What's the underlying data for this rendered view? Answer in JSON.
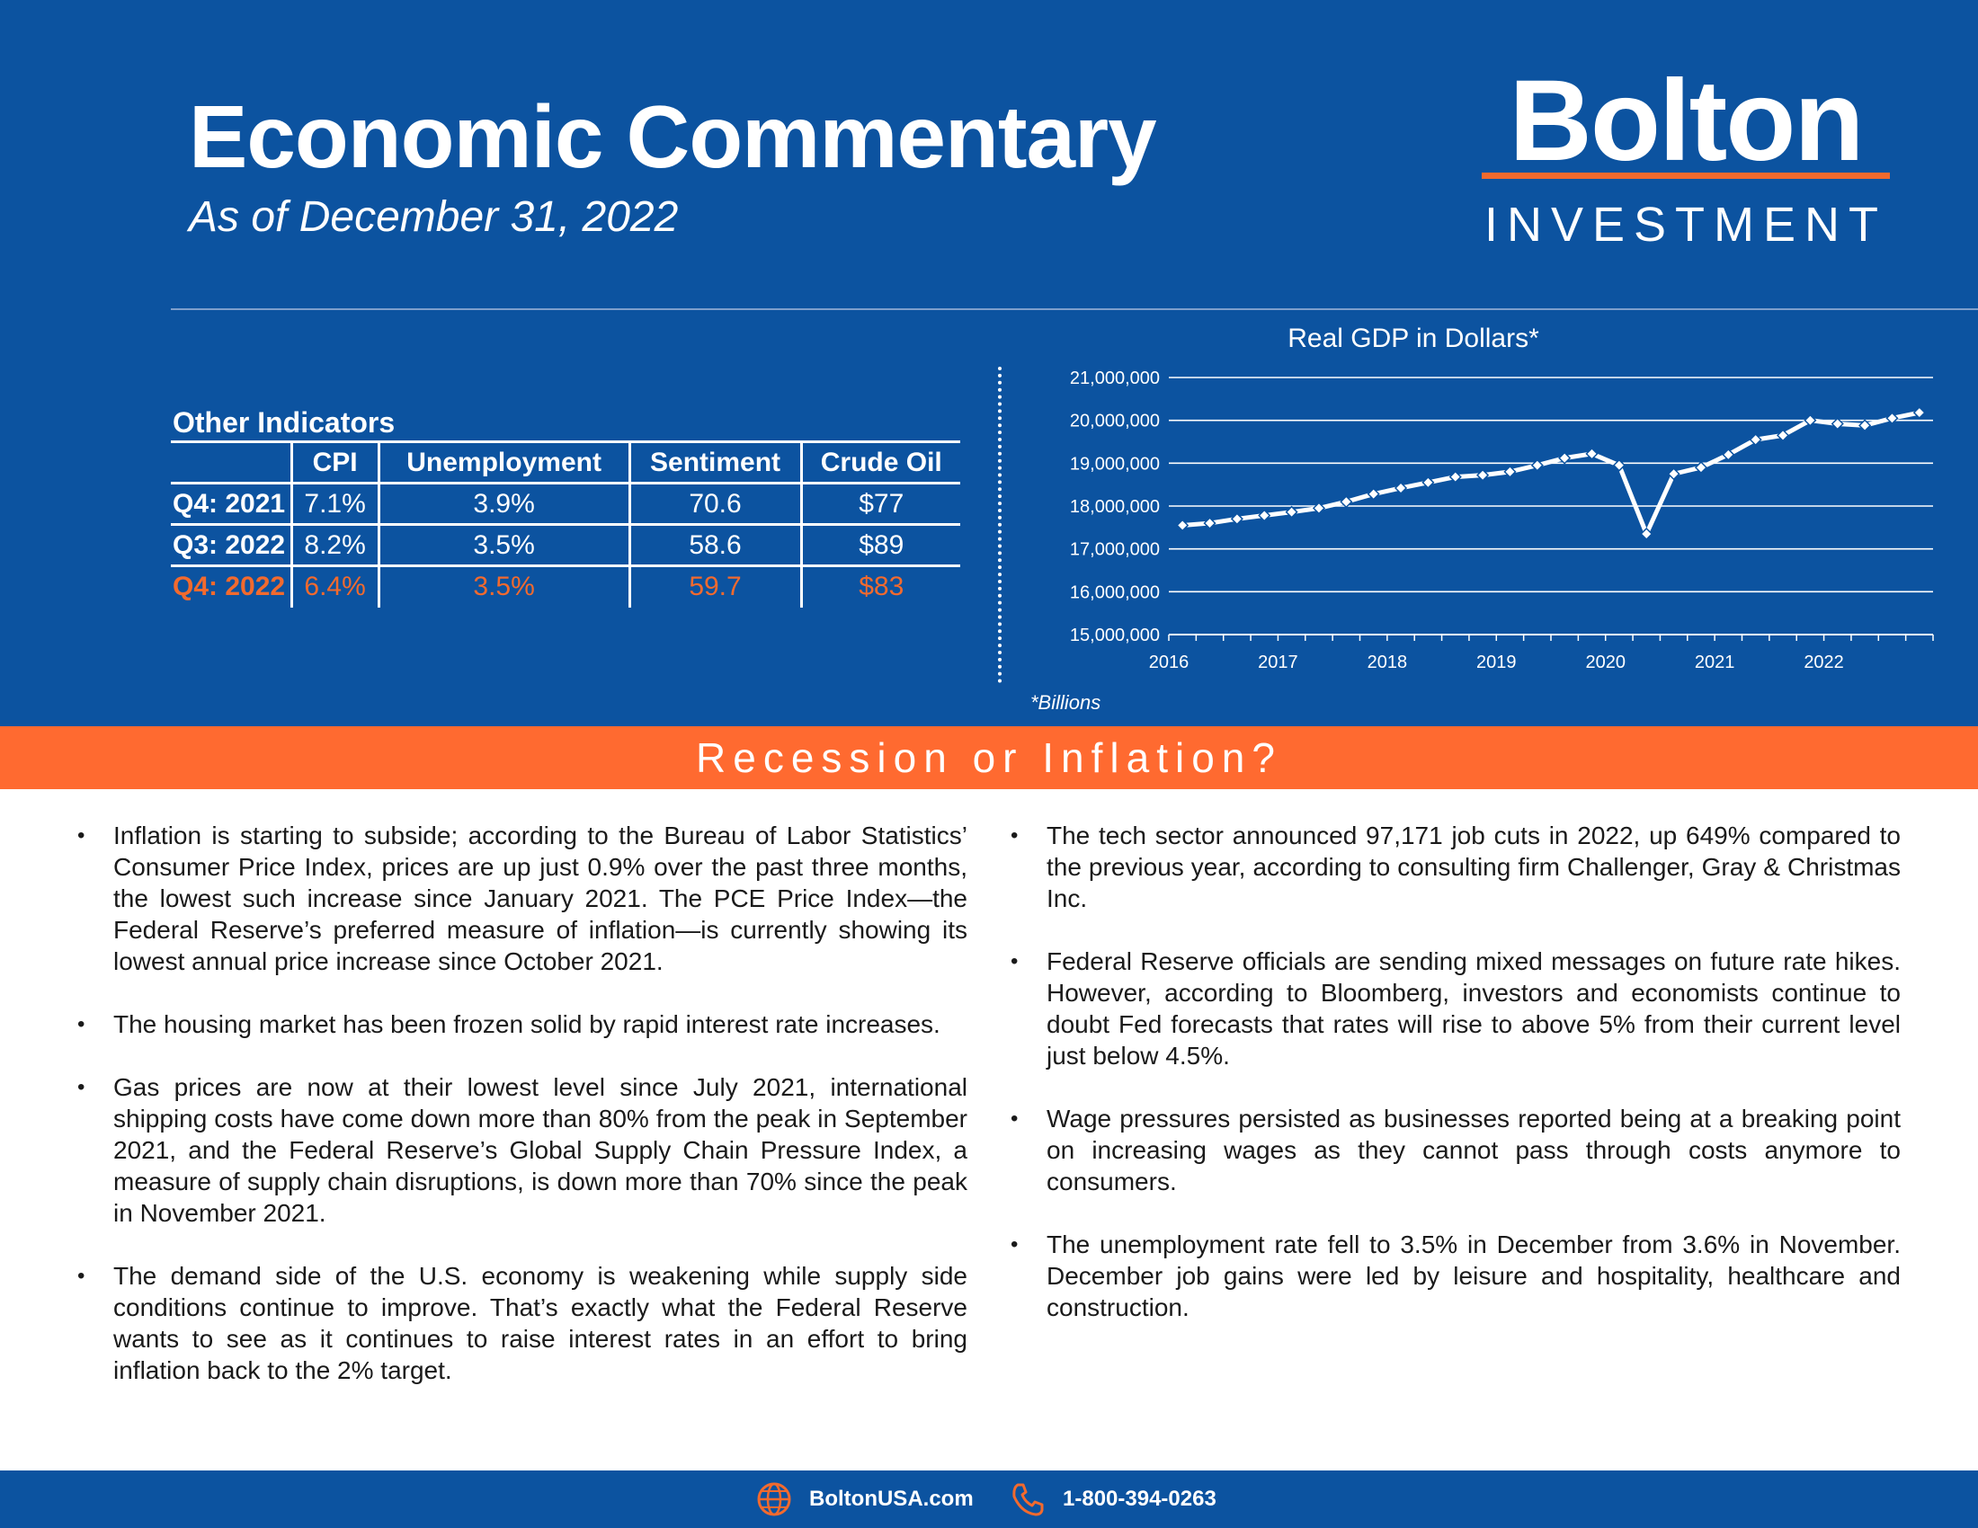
{
  "header": {
    "title": "Economic Commentary",
    "subtitle": "As of December 31, 2022",
    "logo_top": "Bolton",
    "logo_bottom": "INVESTMENT",
    "bg_color": "#0c53a0",
    "accent_color": "#f26a2e"
  },
  "indicators": {
    "title": "Other Indicators",
    "columns": [
      "CPI",
      "Unemployment",
      "Sentiment",
      "Crude Oil"
    ],
    "rows": [
      {
        "label": "Q4: 2021",
        "values": [
          "7.1%",
          "3.9%",
          "70.6",
          "$77"
        ]
      },
      {
        "label": "Q3: 2022",
        "values": [
          "8.2%",
          "3.5%",
          "58.6",
          "$89"
        ]
      },
      {
        "label": "Q4: 2022",
        "values": [
          "6.4%",
          "3.5%",
          "59.7",
          "$83"
        ]
      }
    ]
  },
  "chart_data": {
    "type": "line",
    "title": "Real GDP in Dollars*",
    "footnote": "*Billions",
    "ylim": [
      15000000,
      21000000
    ],
    "y_ticks": [
      "15,000,000",
      "16,000,000",
      "17,000,000",
      "18,000,000",
      "19,000,000",
      "20,000,000",
      "21,000,000"
    ],
    "x_ticks": [
      "2016",
      "2017",
      "2018",
      "2019",
      "2020",
      "2021",
      "2022"
    ],
    "grid": true,
    "series": [
      {
        "x": [
          "2016-Q1",
          "2016-Q2",
          "2016-Q3",
          "2016-Q4",
          "2017-Q1",
          "2017-Q2",
          "2017-Q3",
          "2017-Q4",
          "2018-Q1",
          "2018-Q2",
          "2018-Q3",
          "2018-Q4",
          "2019-Q1",
          "2019-Q2",
          "2019-Q3",
          "2019-Q4",
          "2020-Q1",
          "2020-Q2",
          "2020-Q3",
          "2020-Q4",
          "2021-Q1",
          "2021-Q2",
          "2021-Q3",
          "2021-Q4",
          "2022-Q1",
          "2022-Q2",
          "2022-Q3",
          "2022-Q4"
        ],
        "values": [
          17550000,
          17600000,
          17700000,
          17780000,
          17860000,
          17950000,
          18100000,
          18280000,
          18420000,
          18550000,
          18680000,
          18720000,
          18800000,
          18950000,
          19120000,
          19220000,
          18950000,
          17350000,
          18750000,
          18900000,
          19200000,
          19550000,
          19650000,
          20000000,
          19920000,
          19880000,
          20050000,
          20180000
        ]
      }
    ]
  },
  "section_title": "Recession or Inflation?",
  "bullets_left": [
    "Inflation is starting to subside; according to the Bureau of Labor Statistics’ Consumer Price Index, prices are up just 0.9% over the past three months, the lowest such increase since January 2021. The PCE Price Index—the Federal Reserve’s preferred measure of inflation—is currently showing its lowest annual price increase since October 2021.",
    "The housing market has been frozen solid by rapid interest rate increases.",
    "Gas prices are now at their lowest level since July 2021, international shipping costs have come down more than 80% from the peak in September 2021, and the Federal Reserve’s Global Supply Chain Pressure Index, a measure of supply chain disruptions, is down more than 70% since the peak in November 2021.",
    "The demand side of the U.S. economy is weakening while supply side conditions continue to improve. That’s exactly what the Federal Reserve wants to see as it continues to raise interest rates in an effort to bring inflation back to the 2% target."
  ],
  "bullets_right": [
    "The tech sector announced 97,171 job cuts in 2022, up 649% compared to the previous year, according to consulting firm Challenger, Gray & Christmas Inc.",
    "Federal Reserve officials are sending mixed messages on future rate hikes. However, according to Bloomberg, investors and economists continue to doubt Fed forecasts that rates will rise to above 5% from their current level just below 4.5%.",
    "Wage pressures persisted as businesses reported being at a breaking point on increasing wages as they cannot pass through costs anymore to consumers.",
    "The unemployment rate fell to 3.5% in December from 3.6% in November. December job gains were led by leisure and hospitality, healthcare and construction."
  ],
  "footer": {
    "website": "BoltonUSA.com",
    "phone": "1-800-394-0263",
    "website_icon": "globe-icon",
    "phone_icon": "phone-icon"
  }
}
